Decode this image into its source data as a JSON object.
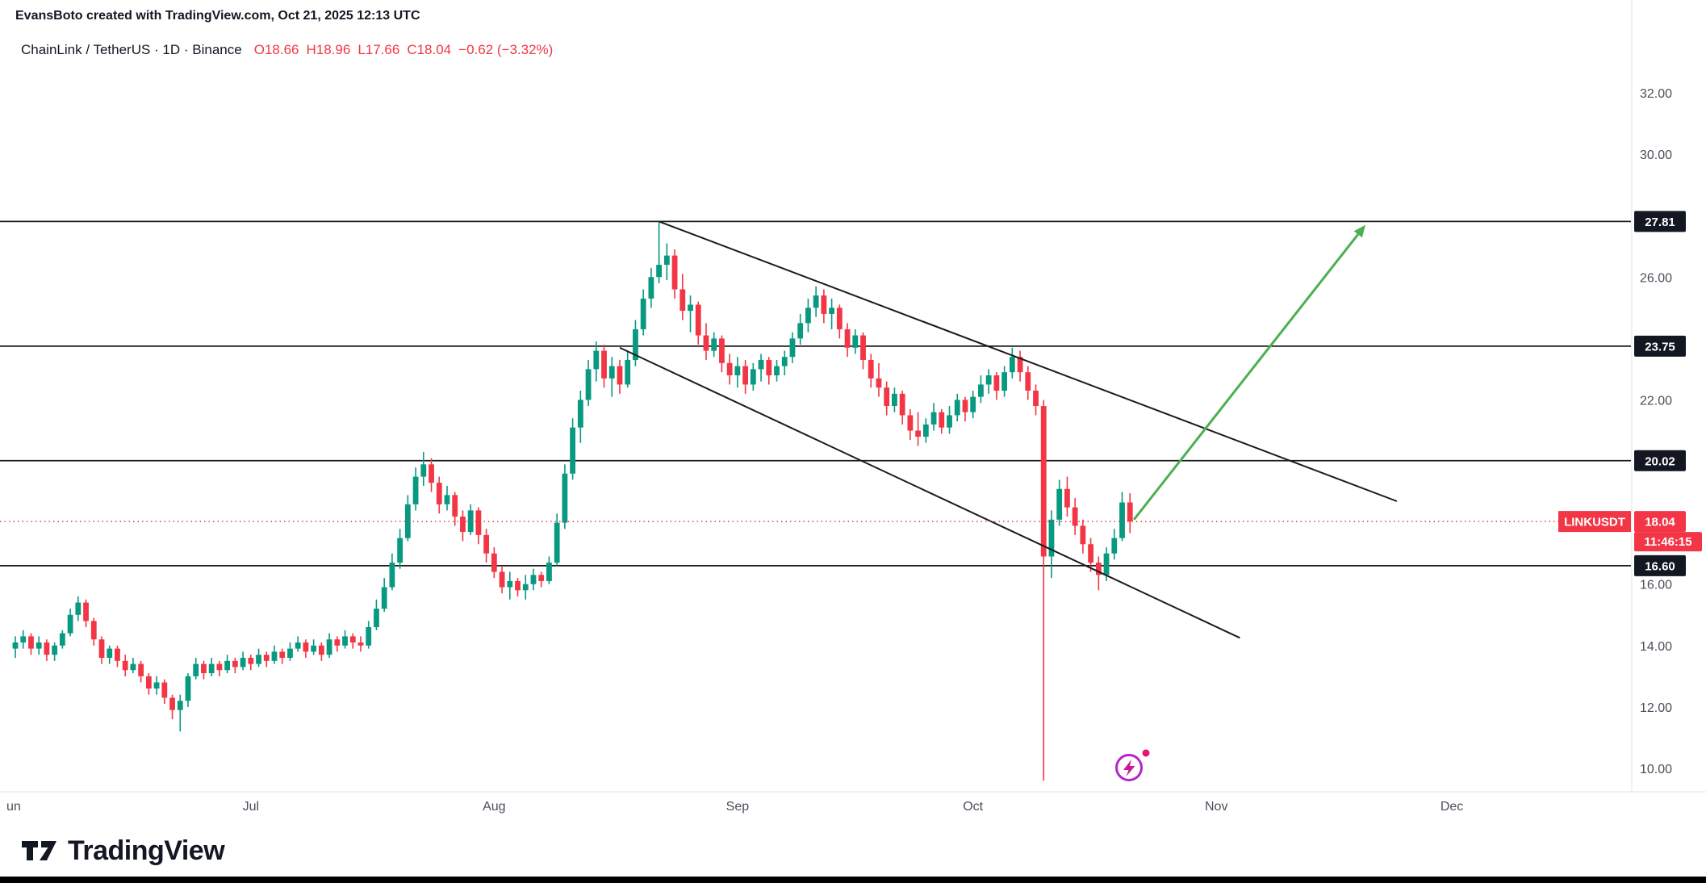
{
  "header": {
    "attribution": "EvansBoto created with TradingView.com, Oct 21, 2025 12:13 UTC"
  },
  "legend": {
    "symbol": "ChainLink / TetherUS · 1D · Binance",
    "open": "O18.66",
    "high": "H18.96",
    "low": "L17.66",
    "close": "C18.04",
    "change": "−0.62 (−3.32%)"
  },
  "footer": {
    "logo_text": "TradingView"
  },
  "chart_data": {
    "type": "candlestick",
    "title": "ChainLink / TetherUS · 1D · Binance",
    "symbol": "LINKUSDT",
    "interval": "1D",
    "colors": {
      "up": "#089981",
      "down": "#F23645",
      "line": "#1b1b1b",
      "arrow": "#4caf50",
      "axis_text": "#4a4e59",
      "badge_dark": "#131722",
      "badge_red": "#F23645",
      "separator": "#e0e3eb"
    },
    "y_axis": {
      "ticks": [
        {
          "price": 32,
          "label": "32.00"
        },
        {
          "price": 30,
          "label": "30.00"
        },
        {
          "price": 26,
          "label": "26.00"
        },
        {
          "price": 22,
          "label": "22.00"
        },
        {
          "price": 16,
          "label": "16.00"
        },
        {
          "price": 14,
          "label": "14.00"
        },
        {
          "price": 12,
          "label": "12.00"
        },
        {
          "price": 10,
          "label": "10.00"
        }
      ]
    },
    "x_axis": {
      "months": [
        {
          "label": "un",
          "d": 0
        },
        {
          "label": "Jul",
          "d": 30
        },
        {
          "label": "Aug",
          "d": 61
        },
        {
          "label": "Sep",
          "d": 92
        },
        {
          "label": "Oct",
          "d": 122
        },
        {
          "label": "Nov",
          "d": 153
        },
        {
          "label": "Dec",
          "d": 183
        }
      ]
    },
    "levels": [
      {
        "price": 27.81,
        "label": "27.81"
      },
      {
        "price": 23.75,
        "label": "23.75"
      },
      {
        "price": 20.02,
        "label": "20.02"
      },
      {
        "price": 16.6,
        "label": "16.60"
      }
    ],
    "current": {
      "symbol": "LINKUSDT",
      "price": 18.04,
      "label": "18.04",
      "countdown": "11:46:15"
    },
    "trend_lines": [
      {
        "from": {
          "date": "Aug 22",
          "d": 82,
          "price": 27.81
        },
        "to": {
          "date": "Nov 24",
          "d": 176,
          "price": 18.7
        }
      },
      {
        "from": {
          "date": "Aug 17",
          "d": 77,
          "price": 23.7
        },
        "to": {
          "date": "Nov 4",
          "d": 156,
          "price": 14.25
        }
      }
    ],
    "projection_arrow": {
      "from": {
        "date": "Oct 21",
        "d": 142.5,
        "price": 18.1
      },
      "to": {
        "date": "Nov 20",
        "d": 172,
        "price": 27.7
      },
      "color": "#4caf50"
    },
    "candles": [
      [
        "Jun 1",
        13.9,
        14.3,
        13.6,
        14.1
      ],
      [
        "Jun 2",
        14.1,
        14.5,
        13.9,
        14.3
      ],
      [
        "Jun 3",
        14.3,
        14.4,
        13.7,
        13.9
      ],
      [
        "Jun 4",
        13.9,
        14.3,
        13.7,
        14.1
      ],
      [
        "Jun 5",
        14.1,
        14.2,
        13.5,
        13.7
      ],
      [
        "Jun 6",
        13.7,
        14.1,
        13.5,
        14.0
      ],
      [
        "Jun 7",
        14.0,
        14.5,
        13.9,
        14.4
      ],
      [
        "Jun 8",
        14.4,
        15.2,
        14.3,
        15.0
      ],
      [
        "Jun 9",
        15.0,
        15.6,
        14.8,
        15.4
      ],
      [
        "Jun 10",
        15.4,
        15.5,
        14.6,
        14.8
      ],
      [
        "Jun 11",
        14.8,
        14.9,
        14.0,
        14.2
      ],
      [
        "Jun 12",
        14.2,
        14.3,
        13.4,
        13.6
      ],
      [
        "Jun 13",
        13.6,
        14.0,
        13.4,
        13.9
      ],
      [
        "Jun 14",
        13.9,
        14.0,
        13.3,
        13.5
      ],
      [
        "Jun 15",
        13.5,
        13.7,
        13.0,
        13.2
      ],
      [
        "Jun 16",
        13.2,
        13.6,
        13.1,
        13.4
      ],
      [
        "Jun 17",
        13.4,
        13.5,
        12.8,
        13.0
      ],
      [
        "Jun 18",
        13.0,
        13.1,
        12.4,
        12.6
      ],
      [
        "Jun 19",
        12.6,
        13.0,
        12.4,
        12.8
      ],
      [
        "Jun 20",
        12.8,
        12.9,
        12.1,
        12.3
      ],
      [
        "Jun 21",
        12.3,
        12.4,
        11.6,
        11.9
      ],
      [
        "Jun 22",
        11.9,
        12.4,
        11.2,
        12.2
      ],
      [
        "Jun 23",
        12.2,
        13.1,
        12.0,
        13.0
      ],
      [
        "Jun 24",
        13.0,
        13.6,
        12.9,
        13.4
      ],
      [
        "Jun 25",
        13.4,
        13.5,
        12.9,
        13.1
      ],
      [
        "Jun 26",
        13.1,
        13.6,
        13.0,
        13.4
      ],
      [
        "Jun 27",
        13.4,
        13.5,
        13.0,
        13.2
      ],
      [
        "Jun 28",
        13.2,
        13.7,
        13.1,
        13.5
      ],
      [
        "Jun 29",
        13.5,
        13.6,
        13.1,
        13.3
      ],
      [
        "Jun 30",
        13.3,
        13.8,
        13.2,
        13.6
      ],
      [
        "Jul 1",
        13.6,
        13.7,
        13.2,
        13.4
      ],
      [
        "Jul 2",
        13.4,
        13.9,
        13.3,
        13.7
      ],
      [
        "Jul 3",
        13.7,
        13.8,
        13.3,
        13.5
      ],
      [
        "Jul 4",
        13.5,
        14.0,
        13.4,
        13.8
      ],
      [
        "Jul 5",
        13.8,
        13.9,
        13.4,
        13.6
      ],
      [
        "Jul 6",
        13.6,
        14.1,
        13.5,
        13.9
      ],
      [
        "Jul 7",
        13.9,
        14.3,
        13.8,
        14.1
      ],
      [
        "Jul 8",
        14.1,
        14.2,
        13.6,
        13.8
      ],
      [
        "Jul 9",
        13.8,
        14.2,
        13.7,
        14.0
      ],
      [
        "Jul 10",
        14.0,
        14.1,
        13.5,
        13.7
      ],
      [
        "Jul 11",
        13.7,
        14.4,
        13.6,
        14.2
      ],
      [
        "Jul 12",
        14.2,
        14.3,
        13.8,
        14.0
      ],
      [
        "Jul 13",
        14.0,
        14.5,
        13.9,
        14.3
      ],
      [
        "Jul 14",
        14.3,
        14.4,
        13.9,
        14.1
      ],
      [
        "Jul 15",
        14.1,
        14.3,
        13.8,
        14.0
      ],
      [
        "Jul 16",
        14.0,
        14.8,
        13.9,
        14.6
      ],
      [
        "Jul 17",
        14.6,
        15.5,
        14.5,
        15.2
      ],
      [
        "Jul 18",
        15.2,
        16.2,
        15.1,
        15.9
      ],
      [
        "Jul 19",
        15.9,
        17.0,
        15.8,
        16.7
      ],
      [
        "Jul 20",
        16.7,
        17.8,
        16.5,
        17.5
      ],
      [
        "Jul 21",
        17.5,
        18.9,
        17.4,
        18.6
      ],
      [
        "Jul 22",
        18.6,
        19.8,
        18.4,
        19.5
      ],
      [
        "Jul 23",
        19.5,
        20.3,
        19.2,
        19.9
      ],
      [
        "Jul 24",
        19.9,
        20.1,
        19.0,
        19.3
      ],
      [
        "Jul 25",
        19.3,
        19.5,
        18.3,
        18.6
      ],
      [
        "Jul 26",
        18.6,
        19.2,
        18.4,
        18.9
      ],
      [
        "Jul 27",
        18.9,
        19.0,
        17.9,
        18.2
      ],
      [
        "Jul 28",
        18.2,
        18.4,
        17.4,
        17.7
      ],
      [
        "Jul 29",
        17.7,
        18.6,
        17.6,
        18.4
      ],
      [
        "Jul 30",
        18.4,
        18.5,
        17.3,
        17.6
      ],
      [
        "Jul 31",
        17.6,
        17.8,
        16.7,
        17.0
      ],
      [
        "Aug 1",
        17.0,
        17.2,
        16.2,
        16.4
      ],
      [
        "Aug 2",
        16.4,
        16.6,
        15.7,
        15.9
      ],
      [
        "Aug 3",
        15.9,
        16.4,
        15.5,
        16.1
      ],
      [
        "Aug 4",
        16.1,
        16.2,
        15.6,
        15.8
      ],
      [
        "Aug 5",
        15.8,
        16.3,
        15.5,
        16.0
      ],
      [
        "Aug 6",
        16.0,
        16.5,
        15.8,
        16.3
      ],
      [
        "Aug 7",
        16.3,
        16.4,
        15.9,
        16.1
      ],
      [
        "Aug 8",
        16.1,
        16.9,
        16.0,
        16.7
      ],
      [
        "Aug 9",
        16.7,
        18.3,
        16.6,
        18.0
      ],
      [
        "Aug 10",
        18.0,
        19.9,
        17.8,
        19.6
      ],
      [
        "Aug 11",
        19.6,
        21.4,
        19.4,
        21.1
      ],
      [
        "Aug 12",
        21.1,
        22.3,
        20.6,
        22.0
      ],
      [
        "Aug 13",
        22.0,
        23.3,
        21.8,
        23.0
      ],
      [
        "Aug 14",
        23.0,
        23.9,
        22.6,
        23.6
      ],
      [
        "Aug 15",
        23.6,
        23.8,
        22.4,
        22.7
      ],
      [
        "Aug 16",
        22.7,
        23.4,
        22.1,
        23.1
      ],
      [
        "Aug 17",
        23.1,
        23.3,
        22.2,
        22.5
      ],
      [
        "Aug 18",
        22.5,
        23.6,
        22.4,
        23.3
      ],
      [
        "Aug 19",
        23.3,
        24.6,
        23.1,
        24.3
      ],
      [
        "Aug 20",
        24.3,
        25.6,
        24.1,
        25.3
      ],
      [
        "Aug 21",
        25.3,
        26.3,
        25.0,
        26.0
      ],
      [
        "Aug 22",
        26.0,
        27.8,
        25.8,
        26.4
      ],
      [
        "Aug 23",
        26.4,
        27.1,
        25.9,
        26.7
      ],
      [
        "Aug 24",
        26.7,
        26.9,
        25.3,
        25.6
      ],
      [
        "Aug 25",
        25.6,
        26.1,
        24.6,
        24.9
      ],
      [
        "Aug 26",
        24.9,
        25.4,
        24.2,
        25.1
      ],
      [
        "Aug 27",
        25.1,
        25.2,
        23.8,
        24.1
      ],
      [
        "Aug 28",
        24.1,
        24.5,
        23.3,
        23.6
      ],
      [
        "Aug 29",
        23.6,
        24.2,
        23.4,
        24.0
      ],
      [
        "Aug 30",
        24.0,
        24.1,
        22.9,
        23.2
      ],
      [
        "Aug 31",
        23.2,
        23.5,
        22.5,
        22.8
      ],
      [
        "Sep 1",
        22.8,
        23.4,
        22.4,
        23.1
      ],
      [
        "Sep 2",
        23.1,
        23.3,
        22.2,
        22.5
      ],
      [
        "Sep 3",
        22.5,
        23.2,
        22.3,
        23.0
      ],
      [
        "Sep 4",
        23.0,
        23.5,
        22.6,
        23.3
      ],
      [
        "Sep 5",
        23.3,
        23.4,
        22.5,
        22.8
      ],
      [
        "Sep 6",
        22.8,
        23.3,
        22.6,
        23.1
      ],
      [
        "Sep 7",
        23.1,
        23.6,
        22.8,
        23.4
      ],
      [
        "Sep 8",
        23.4,
        24.2,
        23.2,
        24.0
      ],
      [
        "Sep 9",
        24.0,
        24.8,
        23.8,
        24.5
      ],
      [
        "Sep 10",
        24.5,
        25.3,
        24.2,
        25.0
      ],
      [
        "Sep 11",
        25.0,
        25.7,
        24.7,
        25.4
      ],
      [
        "Sep 12",
        25.4,
        25.6,
        24.5,
        24.8
      ],
      [
        "Sep 13",
        24.8,
        25.3,
        24.3,
        25.0
      ],
      [
        "Sep 14",
        25.0,
        25.1,
        24.0,
        24.3
      ],
      [
        "Sep 15",
        24.3,
        24.5,
        23.4,
        23.7
      ],
      [
        "Sep 16",
        23.7,
        24.3,
        23.5,
        24.1
      ],
      [
        "Sep 17",
        24.1,
        24.2,
        23.0,
        23.3
      ],
      [
        "Sep 18",
        23.3,
        23.5,
        22.4,
        22.7
      ],
      [
        "Sep 19",
        22.7,
        23.2,
        22.1,
        22.4
      ],
      [
        "Sep 20",
        22.4,
        22.6,
        21.5,
        21.8
      ],
      [
        "Sep 21",
        21.8,
        22.4,
        21.6,
        22.2
      ],
      [
        "Sep 22",
        22.2,
        22.3,
        21.2,
        21.5
      ],
      [
        "Sep 23",
        21.5,
        21.7,
        20.7,
        21.0
      ],
      [
        "Sep 24",
        21.0,
        21.6,
        20.5,
        20.8
      ],
      [
        "Sep 25",
        20.8,
        21.4,
        20.6,
        21.2
      ],
      [
        "Sep 26",
        21.2,
        21.9,
        21.0,
        21.6
      ],
      [
        "Sep 27",
        21.6,
        21.7,
        20.9,
        21.1
      ],
      [
        "Sep 28",
        21.1,
        21.8,
        20.9,
        21.5
      ],
      [
        "Sep 29",
        21.5,
        22.2,
        21.3,
        22.0
      ],
      [
        "Sep 30",
        22.0,
        22.1,
        21.3,
        21.6
      ],
      [
        "Oct 1",
        21.6,
        22.3,
        21.4,
        22.1
      ],
      [
        "Oct 2",
        22.1,
        22.8,
        21.9,
        22.5
      ],
      [
        "Oct 3",
        22.5,
        23.0,
        22.2,
        22.8
      ],
      [
        "Oct 4",
        22.8,
        22.9,
        22.0,
        22.3
      ],
      [
        "Oct 5",
        22.3,
        23.1,
        22.1,
        22.9
      ],
      [
        "Oct 6",
        22.9,
        23.7,
        22.7,
        23.4
      ],
      [
        "Oct 7",
        23.4,
        23.6,
        22.6,
        22.9
      ],
      [
        "Oct 8",
        22.9,
        23.1,
        22.0,
        22.3
      ],
      [
        "Oct 9",
        22.3,
        22.5,
        21.5,
        21.8
      ],
      [
        "Oct 10",
        21.8,
        22.0,
        9.6,
        16.9
      ],
      [
        "Oct 11",
        16.9,
        18.4,
        16.2,
        18.1
      ],
      [
        "Oct 12",
        18.1,
        19.4,
        17.9,
        19.1
      ],
      [
        "Oct 13",
        19.1,
        19.5,
        18.2,
        18.5
      ],
      [
        "Oct 14",
        18.5,
        18.8,
        17.6,
        17.9
      ],
      [
        "Oct 15",
        17.9,
        18.1,
        17.0,
        17.3
      ],
      [
        "Oct 16",
        17.3,
        17.5,
        16.4,
        16.7
      ],
      [
        "Oct 17",
        16.7,
        16.9,
        15.8,
        16.3
      ],
      [
        "Oct 18",
        16.3,
        17.2,
        16.1,
        17.0
      ],
      [
        "Oct 19",
        17.0,
        17.8,
        16.8,
        17.5
      ],
      [
        "Oct 20",
        17.5,
        19.0,
        17.4,
        18.66
      ],
      [
        "Oct 21",
        18.66,
        18.96,
        17.66,
        18.04
      ]
    ]
  }
}
